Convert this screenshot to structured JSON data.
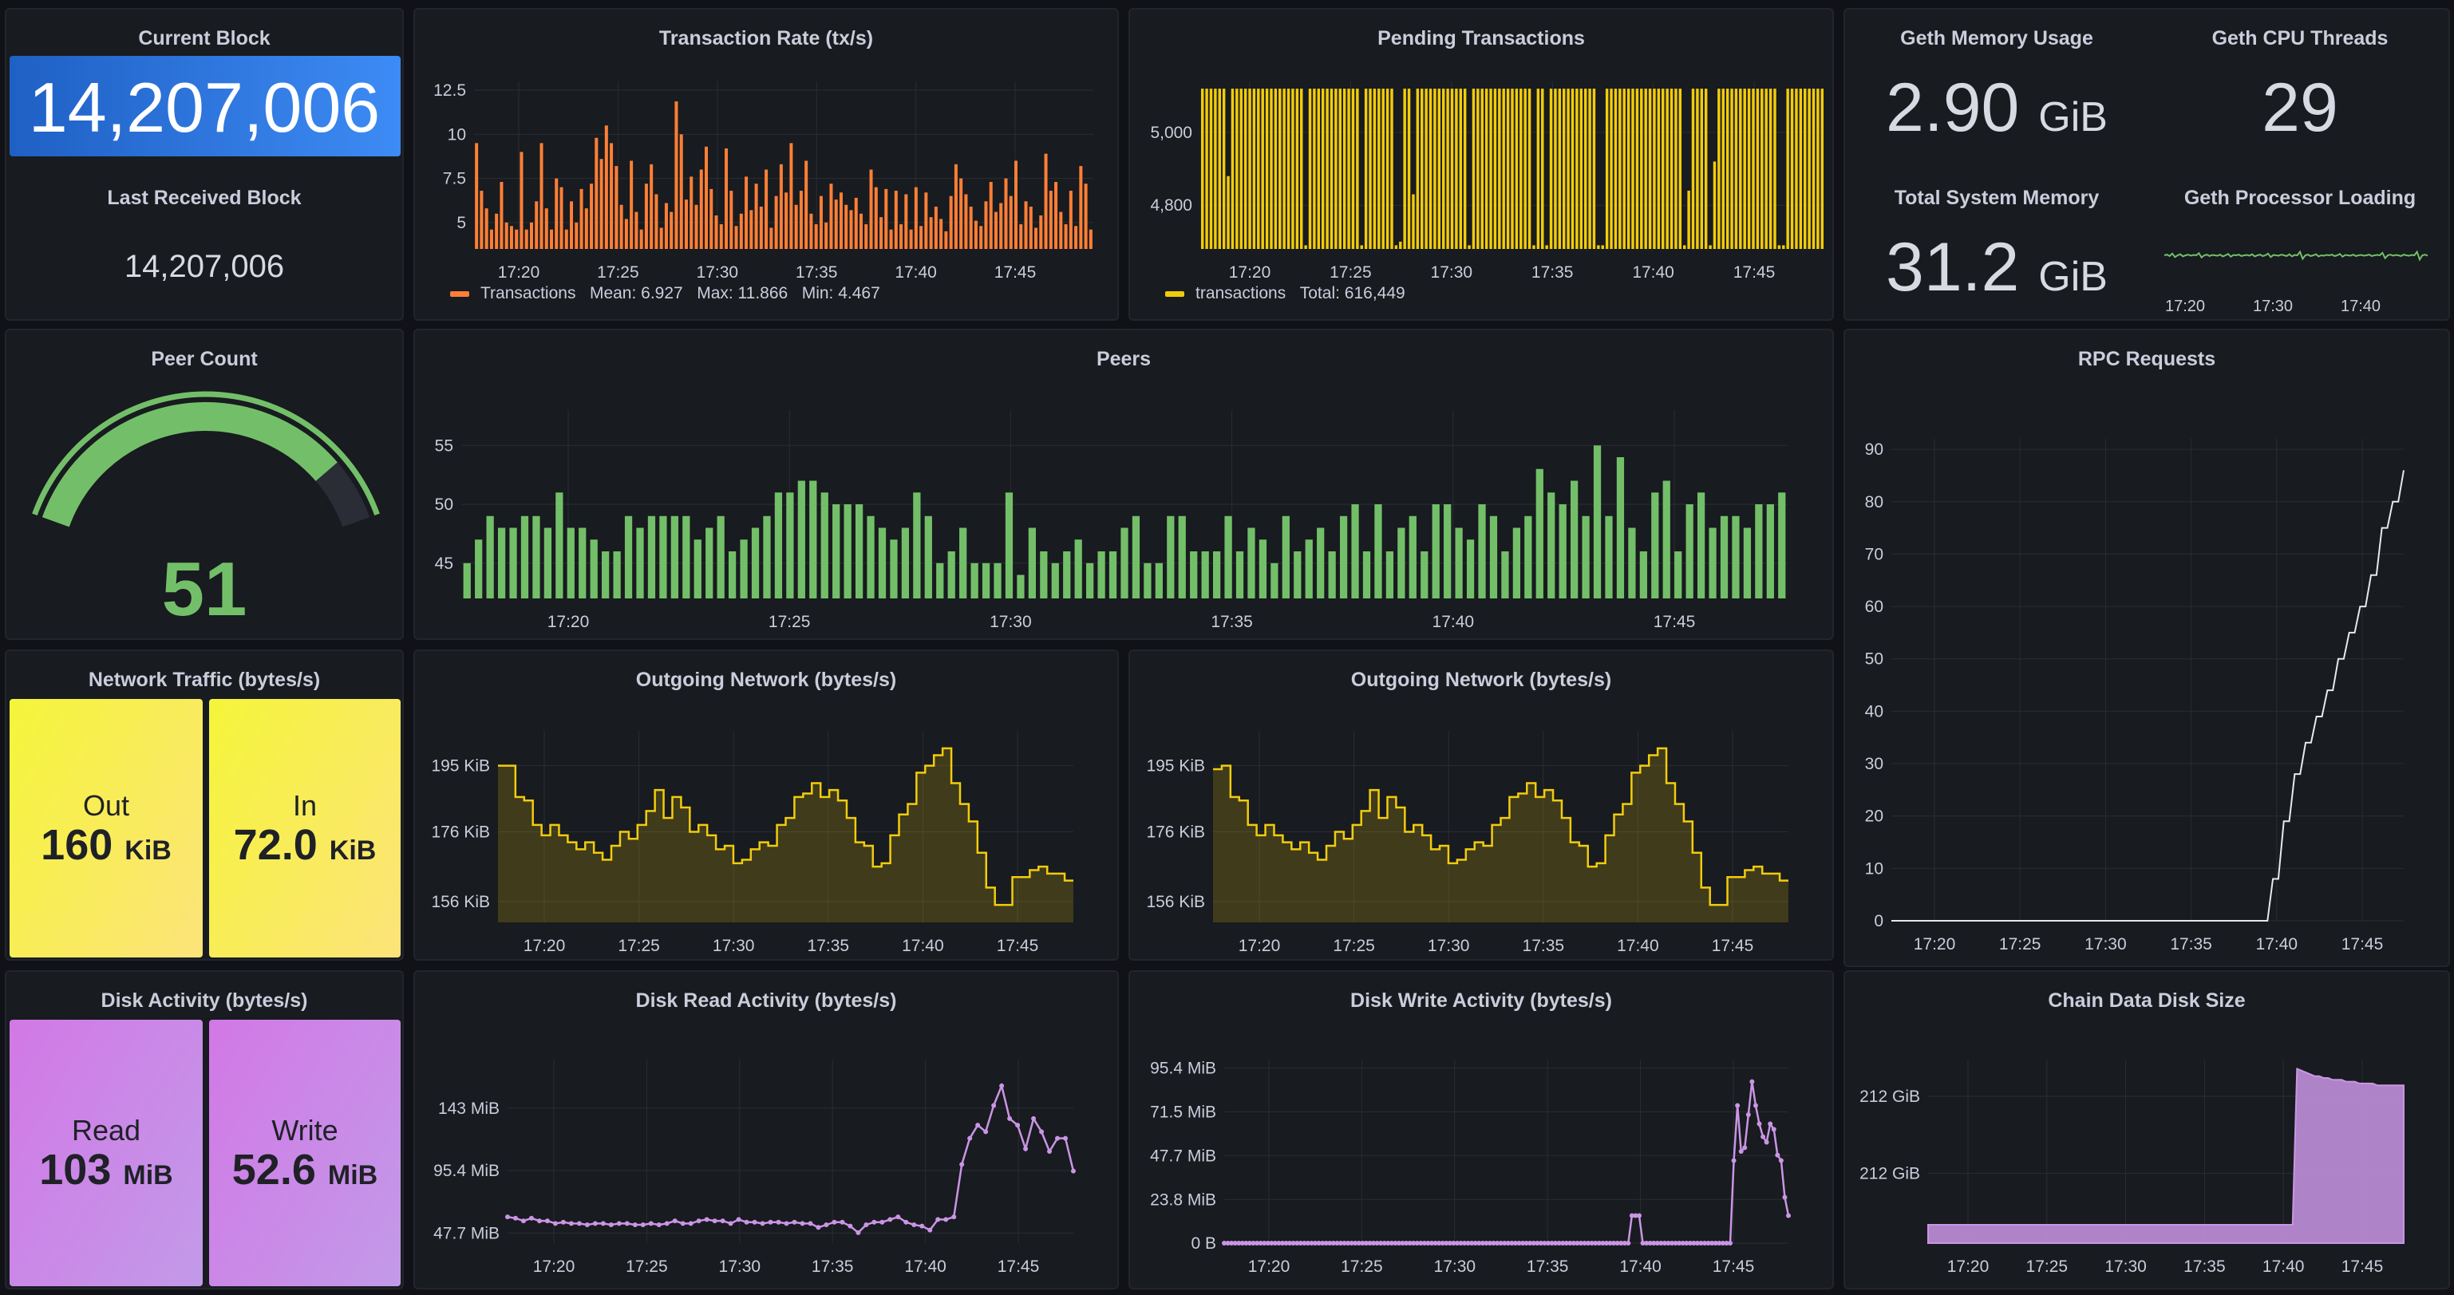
{
  "current_block": {
    "title": "Current Block",
    "value": "14,207,006"
  },
  "last_received_block": {
    "title": "Last Received Block",
    "value": "14,207,006"
  },
  "geth_memory": {
    "title": "Geth Memory Usage",
    "value": "2.90",
    "unit": "GiB"
  },
  "geth_cpu_threads": {
    "title": "Geth CPU Threads",
    "value": "29"
  },
  "total_system_memory": {
    "title": "Total System Memory",
    "value": "31.2",
    "unit": "GiB"
  },
  "geth_processor_loading": {
    "title": "Geth Processor Loading",
    "x_ticks": [
      "17:20",
      "17:30",
      "17:40"
    ]
  },
  "peer_count": {
    "title": "Peer Count",
    "value": "51",
    "gauge_fraction": 0.85
  },
  "network_traffic": {
    "title": "Network Traffic (bytes/s)",
    "out": {
      "label": "Out",
      "value": "160",
      "unit": "KiB"
    },
    "in": {
      "label": "In",
      "value": "72.0",
      "unit": "KiB"
    }
  },
  "disk_activity": {
    "title": "Disk Activity (bytes/s)",
    "read": {
      "label": "Read",
      "value": "103",
      "unit": "MiB"
    },
    "write": {
      "label": "Write",
      "value": "52.6",
      "unit": "MiB"
    }
  },
  "colors": {
    "orange": "#ff7f36",
    "yellow": "#f2cc0c",
    "green": "#73bf69",
    "purple": "#ca95e5",
    "white": "#e8e8ee",
    "blue": "#1f60c4"
  },
  "chart_data": [
    {
      "id": "tx_rate",
      "type": "bar",
      "title": "Transaction Rate (tx/s)",
      "x_ticks": [
        "17:20",
        "17:25",
        "17:30",
        "17:35",
        "17:40",
        "17:45"
      ],
      "y_ticks": [
        "5",
        "7.5",
        "10",
        "12.5"
      ],
      "ylim": [
        3.5,
        13
      ],
      "legend": {
        "name": "Transactions",
        "stats": "Mean: 6.927   Max: 11.866   Min: 4.467"
      },
      "values": [
        9.5,
        6.8,
        5.8,
        4.6,
        5.5,
        7.3,
        5,
        4.8,
        4.6,
        9,
        4.6,
        5,
        6.2,
        9.5,
        5.8,
        4.6,
        7.5,
        7,
        4.6,
        6.2,
        5,
        6.9,
        5.8,
        7.2,
        9.8,
        8.6,
        10.5,
        9.5,
        8.2,
        6,
        5.2,
        8.5,
        5.6,
        4.6,
        7.2,
        8.3,
        6.6,
        4.7,
        6.1,
        5.6,
        11.866,
        10,
        6.3,
        7.6,
        6,
        8,
        9.3,
        6.9,
        5.4,
        4.9,
        9.2,
        6.8,
        4.8,
        5.5,
        7.6,
        5.7,
        7.2,
        5.9,
        8,
        4.7,
        6.5,
        8.3,
        6.7,
        9.5,
        6,
        6.8,
        8.5,
        5.5,
        4.9,
        6.5,
        5,
        7.2,
        6.3,
        6.7,
        6,
        5.7,
        6.4,
        5.5,
        4.9,
        8,
        7,
        5.3,
        6.9,
        4.6,
        6.8,
        4.9,
        6.6,
        4.6,
        7,
        4.8,
        6.7,
        5.3,
        5.9,
        5.2,
        4.5,
        6.5,
        8.3,
        7.5,
        6.6,
        5.9,
        5.1,
        4.8,
        6.2,
        7.3,
        5.6,
        6.1,
        7.5,
        6.5,
        8.5,
        4.9,
        6.2,
        5.9,
        4.7,
        5.4,
        8.9,
        6.8,
        7.3,
        5.6,
        4.9,
        6.8,
        4.8,
        8.2,
        7.2,
        4.6
      ]
    },
    {
      "id": "pending",
      "type": "bar",
      "title": "Pending Transactions",
      "x_ticks": [
        "17:20",
        "17:25",
        "17:30",
        "17:35",
        "17:40",
        "17:45"
      ],
      "y_ticks": [
        "4,800",
        "5,000"
      ],
      "ylim": [
        4680,
        5140
      ],
      "legend": {
        "name": "transactions",
        "stats": "Total: 616,449"
      },
      "values": [
        5120,
        5120,
        5120,
        5120,
        5120,
        5120,
        4880,
        5120,
        5120,
        5120,
        5120,
        5120,
        5120,
        5120,
        5120,
        5120,
        5120,
        5120,
        5120,
        5120,
        5120,
        5120,
        5120,
        5120,
        4690,
        5120,
        5120,
        5120,
        5120,
        5120,
        5120,
        5120,
        5120,
        5120,
        5120,
        5120,
        5120,
        4690,
        5120,
        5120,
        5120,
        5120,
        5120,
        5120,
        5120,
        4690,
        4700,
        5120,
        5120,
        4830,
        5120,
        5120,
        5120,
        5120,
        5120,
        5120,
        5120,
        5120,
        5120,
        5120,
        5120,
        5120,
        4690,
        5120,
        5120,
        5120,
        5120,
        5120,
        5120,
        5120,
        5120,
        5120,
        5120,
        5120,
        5120,
        5120,
        5120,
        4690,
        5120,
        5120,
        4690,
        5120,
        5120,
        5120,
        5120,
        5120,
        5120,
        5120,
        5120,
        5120,
        5120,
        5120,
        4690,
        4690,
        5120,
        5120,
        5120,
        5120,
        5120,
        5120,
        5120,
        5120,
        5120,
        5120,
        5120,
        5120,
        5120,
        5120,
        5120,
        5120,
        5120,
        5120,
        4690,
        4840,
        5120,
        5120,
        5120,
        5120,
        4690,
        4920,
        5120,
        5120,
        5120,
        5120,
        5120,
        5120,
        5120,
        5120,
        5120,
        5120,
        5120,
        5120,
        5120,
        5120,
        4690,
        4690,
        5120,
        5120,
        5120,
        5120,
        5120,
        5120,
        5120,
        5120,
        5120
      ]
    },
    {
      "id": "peers",
      "type": "bar",
      "title": "Peers",
      "x_ticks": [
        "17:20",
        "17:25",
        "17:30",
        "17:35",
        "17:40",
        "17:45"
      ],
      "y_ticks": [
        "45",
        "50",
        "55"
      ],
      "ylim": [
        42,
        58
      ],
      "values": [
        45,
        47,
        49,
        48,
        48,
        49,
        49,
        48,
        51,
        48,
        48,
        47,
        46,
        46,
        49,
        48,
        49,
        49,
        49,
        49,
        47,
        48,
        49,
        46,
        47,
        48,
        49,
        51,
        51,
        52,
        52,
        51,
        50,
        50,
        50,
        49,
        48,
        47,
        48,
        51,
        49,
        45,
        46,
        48,
        45,
        45,
        45,
        51,
        44,
        48,
        46,
        45,
        46,
        47,
        45,
        46,
        46,
        48,
        49,
        45,
        45,
        49,
        49,
        46,
        46,
        46,
        49,
        46,
        48,
        47,
        45,
        49,
        46,
        47,
        48,
        46,
        49,
        50,
        46,
        50,
        46,
        48,
        49,
        46,
        50,
        50,
        48,
        47,
        50,
        49,
        46,
        48,
        49,
        53,
        51,
        50,
        52,
        49,
        55,
        49,
        54,
        48,
        46,
        51,
        52,
        46,
        50,
        51,
        48,
        49,
        49,
        48,
        50,
        50,
        51
      ]
    },
    {
      "id": "outgoing_1",
      "type": "area",
      "title": "Outgoing Network (bytes/s)",
      "x_ticks": [
        "17:20",
        "17:25",
        "17:30",
        "17:35",
        "17:40",
        "17:45"
      ],
      "y_ticks": [
        "156 KiB",
        "176 KiB",
        "195 KiB"
      ],
      "ylim": [
        150,
        205
      ],
      "values": [
        195,
        195,
        186,
        185,
        178,
        175,
        178,
        175,
        173,
        171,
        173,
        170,
        168,
        172,
        176,
        174,
        178,
        182,
        188,
        180,
        186,
        183,
        176,
        178,
        175,
        171,
        172,
        167,
        168,
        171,
        173,
        172,
        178,
        180,
        186,
        187,
        190,
        186,
        188,
        185,
        180,
        173,
        172,
        166,
        167,
        175,
        181,
        184,
        193,
        195,
        198,
        200,
        190,
        184,
        179,
        170,
        160,
        155,
        155,
        163,
        163,
        165,
        166,
        164,
        164,
        162,
        162
      ]
    },
    {
      "id": "outgoing_2",
      "type": "area",
      "title": "Outgoing Network (bytes/s)",
      "x_ticks": [
        "17:20",
        "17:25",
        "17:30",
        "17:35",
        "17:40",
        "17:45"
      ],
      "y_ticks": [
        "156 KiB",
        "176 KiB",
        "195 KiB"
      ],
      "ylim": [
        150,
        205
      ],
      "values": [
        194,
        195,
        186,
        185,
        178,
        175,
        178,
        175,
        173,
        171,
        173,
        170,
        168,
        172,
        176,
        174,
        178,
        182,
        188,
        180,
        186,
        183,
        176,
        178,
        175,
        171,
        172,
        167,
        168,
        171,
        173,
        172,
        178,
        180,
        186,
        187,
        190,
        186,
        188,
        185,
        180,
        173,
        172,
        166,
        167,
        175,
        181,
        184,
        193,
        195,
        198,
        200,
        190,
        184,
        179,
        170,
        160,
        155,
        155,
        163,
        163,
        165,
        166,
        164,
        164,
        162,
        162
      ]
    },
    {
      "id": "rpc",
      "type": "line",
      "title": "RPC Requests",
      "x_ticks": [
        "17:20",
        "17:25",
        "17:30",
        "17:35",
        "17:40",
        "17:45"
      ],
      "y_ticks": [
        "0",
        "10",
        "20",
        "30",
        "40",
        "50",
        "60",
        "70",
        "80",
        "90"
      ],
      "ylim": [
        0,
        92
      ],
      "values": [
        0,
        0,
        0,
        0,
        0,
        0,
        0,
        0,
        0,
        0,
        0,
        0,
        0,
        0,
        0,
        0,
        0,
        0,
        0,
        0,
        0,
        0,
        0,
        0,
        0,
        0,
        0,
        0,
        0,
        0,
        0,
        0,
        0,
        0,
        0,
        0,
        0,
        0,
        0,
        0,
        0,
        0,
        0,
        0,
        0,
        0,
        0,
        0,
        0,
        0,
        0,
        0,
        0,
        0,
        0,
        0,
        0,
        0,
        0,
        0,
        0,
        0,
        0,
        0,
        0,
        0,
        0,
        0,
        0,
        0,
        8,
        8,
        19,
        19,
        28,
        28,
        34,
        34,
        39,
        39,
        44,
        44,
        50,
        50,
        55,
        55,
        60,
        60,
        66,
        66,
        75,
        75,
        80,
        80,
        86
      ]
    },
    {
      "id": "disk_read",
      "type": "line",
      "title": "Disk Read Activity (bytes/s)",
      "x_ticks": [
        "17:20",
        "17:25",
        "17:30",
        "17:35",
        "17:40",
        "17:45"
      ],
      "y_ticks": [
        "47.7 MiB",
        "95.4 MiB",
        "143 MiB"
      ],
      "ylim": [
        40,
        180
      ],
      "values": [
        60,
        59,
        57,
        59,
        57,
        57,
        55,
        56,
        55,
        55,
        54,
        55,
        55,
        54,
        55,
        55,
        54,
        54,
        55,
        54,
        55,
        57,
        55,
        55,
        57,
        58,
        57,
        57,
        55,
        58,
        56,
        56,
        55,
        56,
        56,
        55,
        56,
        55,
        55,
        52,
        54,
        56,
        56,
        53,
        48,
        54,
        56,
        56,
        58,
        60,
        56,
        54,
        53,
        50,
        58,
        58,
        60,
        100,
        120,
        130,
        125,
        145,
        160,
        135,
        130,
        112,
        135,
        125,
        110,
        120,
        120,
        95
      ]
    },
    {
      "id": "disk_write",
      "type": "line",
      "title": "Disk Write Activity (bytes/s)",
      "x_ticks": [
        "17:20",
        "17:25",
        "17:30",
        "17:35",
        "17:40",
        "17:45"
      ],
      "y_ticks": [
        "0 B",
        "23.8 MiB",
        "47.7 MiB",
        "71.5 MiB",
        "95.4 MiB"
      ],
      "ylim": [
        0,
        100
      ],
      "values": [
        0,
        0,
        0,
        0,
        0,
        0,
        0,
        0,
        0,
        0,
        0,
        0,
        0,
        0,
        0,
        0,
        0,
        0,
        0,
        0,
        0,
        0,
        0,
        0,
        0,
        0,
        0,
        0,
        0,
        0,
        0,
        0,
        0,
        0,
        0,
        0,
        0,
        0,
        0,
        0,
        0,
        0,
        0,
        0,
        0,
        0,
        0,
        0,
        0,
        0,
        0,
        0,
        0,
        0,
        0,
        0,
        0,
        0,
        0,
        0,
        0,
        0,
        0,
        0,
        0,
        0,
        0,
        0,
        0,
        0,
        0,
        0,
        0,
        0,
        0,
        0,
        0,
        0,
        0,
        0,
        0,
        0,
        0,
        0,
        0,
        0,
        0,
        0,
        0,
        0,
        0,
        0,
        0,
        0,
        0,
        0,
        0,
        0,
        0,
        0,
        0,
        0,
        0,
        0,
        0,
        0,
        0,
        0,
        0,
        0,
        0,
        0,
        15,
        15,
        15,
        0,
        0,
        0,
        0,
        0,
        0,
        0,
        0,
        0,
        0,
        0,
        0,
        0,
        0,
        0,
        0,
        0,
        0,
        0,
        0,
        0,
        0,
        0,
        0,
        0,
        45,
        75,
        50,
        52,
        70,
        88,
        75,
        65,
        58,
        55,
        65,
        62,
        48,
        45,
        25,
        15
      ]
    },
    {
      "id": "chain_size",
      "type": "area",
      "title": "Chain Data Disk Size",
      "x_ticks": [
        "17:20",
        "17:25",
        "17:30",
        "17:35",
        "17:40",
        "17:45"
      ],
      "y_ticks": [
        "212 GiB",
        "212 GiB"
      ],
      "ylim": [
        0,
        100
      ],
      "values": [
        10,
        10,
        10,
        10,
        10,
        10,
        10,
        10,
        10,
        10,
        10,
        10,
        10,
        10,
        10,
        10,
        10,
        10,
        10,
        10,
        10,
        10,
        10,
        10,
        10,
        10,
        10,
        10,
        10,
        10,
        10,
        10,
        10,
        10,
        10,
        10,
        10,
        10,
        10,
        10,
        10,
        10,
        10,
        10,
        10,
        10,
        10,
        10,
        10,
        10,
        10,
        10,
        10,
        10,
        10,
        10,
        10,
        10,
        10,
        10,
        10,
        10,
        10,
        10,
        10,
        10,
        10,
        10,
        10,
        10,
        10,
        10,
        10,
        10,
        10,
        10,
        10,
        10,
        10,
        10,
        10,
        10,
        10,
        95,
        94,
        93,
        92,
        91,
        91,
        90,
        90,
        89,
        89,
        89,
        88,
        88,
        88,
        87,
        87,
        87,
        87,
        86,
        86,
        86,
        86,
        86,
        86,
        86
      ]
    },
    {
      "id": "cpu_spark",
      "type": "line",
      "title": "",
      "values": [
        50,
        52,
        48,
        55,
        45,
        50,
        53,
        47,
        50,
        52,
        49,
        51,
        50,
        56,
        44,
        50,
        52,
        48,
        51,
        50,
        49,
        52,
        47,
        50,
        54,
        46,
        51,
        50,
        52,
        48,
        50,
        51,
        49,
        53,
        47,
        50,
        52,
        48,
        50,
        55,
        45,
        51,
        50,
        49,
        52,
        50,
        48,
        53,
        47,
        51,
        50,
        60,
        40,
        50,
        52,
        48,
        50,
        53,
        47,
        50,
        49,
        51,
        50,
        52,
        48,
        50,
        54,
        46,
        51,
        50,
        49,
        52,
        48,
        50,
        51,
        49,
        50,
        52,
        48,
        50,
        51,
        50,
        57,
        42,
        50,
        52,
        49,
        51,
        50,
        48,
        52,
        50,
        49,
        51,
        50,
        60,
        38,
        50,
        52,
        49
      ]
    }
  ]
}
